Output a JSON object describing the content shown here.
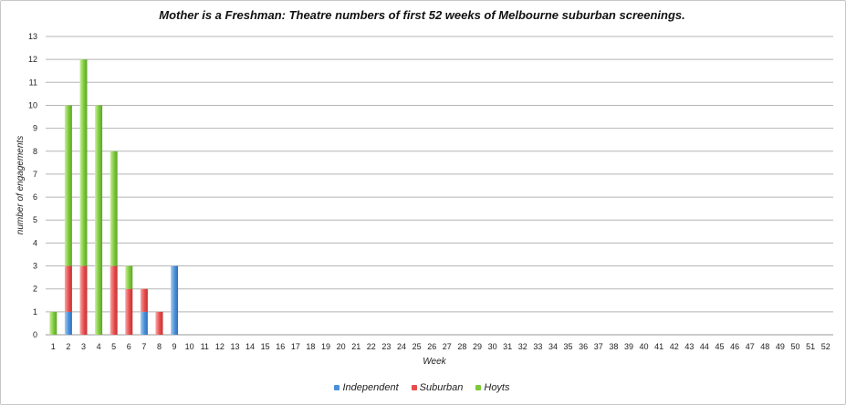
{
  "chart_data": {
    "type": "bar",
    "stacked": true,
    "title": "Mother is a Freshman: Theatre numbers of first 52 weeks of Melbourne suburban screenings.",
    "xlabel": "Week",
    "ylabel": "number of engagements",
    "ylim": [
      0,
      13
    ],
    "yticks": [
      0,
      1,
      2,
      3,
      4,
      5,
      6,
      7,
      8,
      9,
      10,
      11,
      12,
      13
    ],
    "categories": [
      "1",
      "2",
      "3",
      "4",
      "5",
      "6",
      "7",
      "8",
      "9",
      "10",
      "11",
      "12",
      "13",
      "14",
      "15",
      "16",
      "17",
      "18",
      "19",
      "20",
      "21",
      "22",
      "23",
      "24",
      "25",
      "26",
      "27",
      "28",
      "29",
      "30",
      "31",
      "32",
      "33",
      "34",
      "35",
      "36",
      "37",
      "38",
      "39",
      "40",
      "41",
      "42",
      "43",
      "44",
      "45",
      "46",
      "47",
      "48",
      "49",
      "50",
      "51",
      "52"
    ],
    "series": [
      {
        "name": "Independent",
        "color": "#4a90d9",
        "values": [
          0,
          1,
          0,
          0,
          0,
          0,
          1,
          0,
          3,
          0,
          0,
          0,
          0,
          0,
          0,
          0,
          0,
          0,
          0,
          0,
          0,
          0,
          0,
          0,
          0,
          0,
          0,
          0,
          0,
          0,
          0,
          0,
          0,
          0,
          0,
          0,
          0,
          0,
          0,
          0,
          0,
          0,
          0,
          0,
          0,
          0,
          0,
          0,
          0,
          0,
          0,
          0
        ]
      },
      {
        "name": "Suburban",
        "color": "#e84d4d",
        "values": [
          0,
          2,
          3,
          0,
          3,
          2,
          1,
          1,
          0,
          0,
          0,
          0,
          0,
          0,
          0,
          0,
          0,
          0,
          0,
          0,
          0,
          0,
          0,
          0,
          0,
          0,
          0,
          0,
          0,
          0,
          0,
          0,
          0,
          0,
          0,
          0,
          0,
          0,
          0,
          0,
          0,
          0,
          0,
          0,
          0,
          0,
          0,
          0,
          0,
          0,
          0,
          0
        ]
      },
      {
        "name": "Hoyts",
        "color": "#7cc93a",
        "values": [
          1,
          7,
          9,
          10,
          5,
          1,
          0,
          0,
          0,
          0,
          0,
          0,
          0,
          0,
          0,
          0,
          0,
          0,
          0,
          0,
          0,
          0,
          0,
          0,
          0,
          0,
          0,
          0,
          0,
          0,
          0,
          0,
          0,
          0,
          0,
          0,
          0,
          0,
          0,
          0,
          0,
          0,
          0,
          0,
          0,
          0,
          0,
          0,
          0,
          0,
          0,
          0
        ]
      }
    ],
    "grid": true,
    "legend_position": "bottom"
  }
}
